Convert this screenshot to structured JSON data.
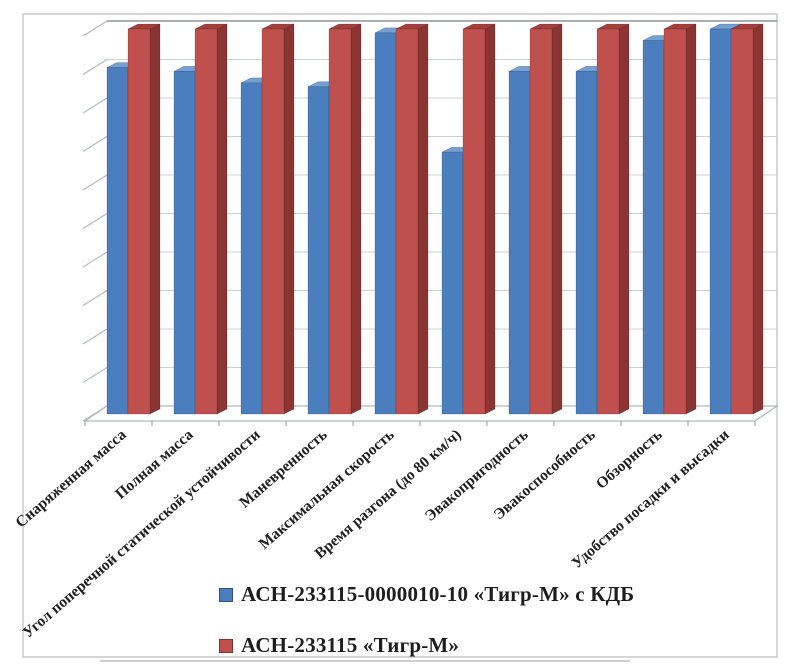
{
  "figure": {
    "background": "#ffffff",
    "border_color": "#c9c9c9",
    "grid_color": "#ccd1d6",
    "wall_top_color": "#8f9499",
    "floor_color": "#b2b7bc",
    "text_color": "#1e1e1e"
  },
  "chart_data": {
    "type": "bar",
    "variant": "3d-clustered-column",
    "title": "",
    "xlabel": "",
    "ylabel": "",
    "categories": [
      "Снаряженная масса",
      "Полная масса",
      "Угол поперечной статической устойчивости",
      "Маневренность",
      "Максимальная скорость",
      "Время разгона (до 80 км/ч)",
      "Эвакопригодность",
      "Эвакоспособность",
      "Обзорность",
      "Удобство посадки и высадки"
    ],
    "series": [
      {
        "name": "АСН-233115-0000010-10 «Тигр-М» с КДБ",
        "color": "#4A7EBE",
        "color_top": "#74A0D4",
        "color_side": "#2E5694",
        "values": [
          9.0,
          8.9,
          8.6,
          8.5,
          9.9,
          6.8,
          8.9,
          8.9,
          9.7,
          10.0
        ]
      },
      {
        "name": "АСН-233115 «Тигр-М»",
        "color": "#C0504D",
        "color_top": "#A63F3C",
        "color_side": "#8C3431",
        "values": [
          10,
          10,
          10,
          10,
          10,
          10,
          10,
          10,
          10,
          10
        ]
      }
    ],
    "ylim": [
      0,
      10
    ],
    "y_gridline_step": 1,
    "y_tick_labels_visible": false,
    "grid": true,
    "legend_position": "bottom-center",
    "x_labels_rotation_deg": -41
  }
}
